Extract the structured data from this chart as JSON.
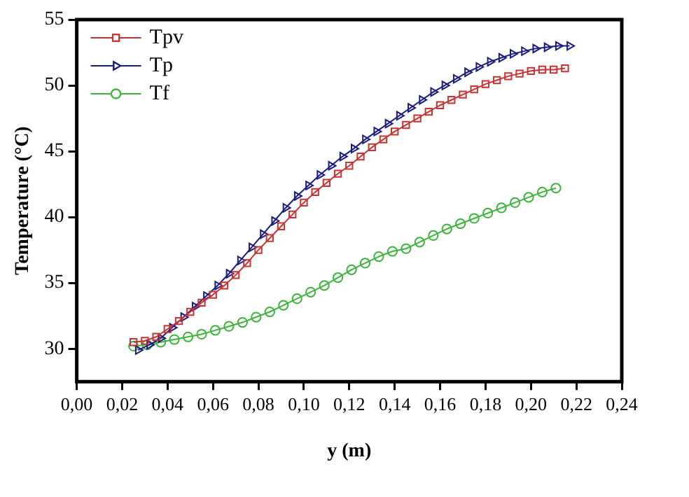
{
  "chart_data": {
    "type": "line",
    "xlabel": "y (m)",
    "ylabel": "Temperature (°C)",
    "xlim": [
      0,
      0.24
    ],
    "ylim": [
      27.5,
      55
    ],
    "xticks": [
      {
        "value": 0,
        "label": "0,00"
      },
      {
        "value": 0.02,
        "label": "0,02"
      },
      {
        "value": 0.04,
        "label": "0,04"
      },
      {
        "value": 0.06,
        "label": "0,06"
      },
      {
        "value": 0.08,
        "label": "0,08"
      },
      {
        "value": 0.1,
        "label": "0,10"
      },
      {
        "value": 0.12,
        "label": "0,12"
      },
      {
        "value": 0.14,
        "label": "0,14"
      },
      {
        "value": 0.16,
        "label": "0,16"
      },
      {
        "value": 0.18,
        "label": "0,18"
      },
      {
        "value": 0.2,
        "label": "0,20"
      },
      {
        "value": 0.22,
        "label": "0,22"
      },
      {
        "value": 0.24,
        "label": "0,24"
      }
    ],
    "yticks": [
      30,
      35,
      40,
      45,
      50,
      55
    ],
    "grid": false,
    "legend": "top left",
    "line_style": "solid",
    "series": [
      {
        "name": "Tpv",
        "color": "#c83232",
        "marker": "square",
        "x": [
          0.025,
          0.03,
          0.035,
          0.04,
          0.045,
          0.05,
          0.055,
          0.06,
          0.065,
          0.07,
          0.075,
          0.08,
          0.085,
          0.09,
          0.095,
          0.1,
          0.105,
          0.11,
          0.115,
          0.12,
          0.125,
          0.13,
          0.135,
          0.14,
          0.145,
          0.15,
          0.155,
          0.16,
          0.165,
          0.17,
          0.175,
          0.18,
          0.185,
          0.19,
          0.195,
          0.2,
          0.205,
          0.21,
          0.215
        ],
        "values": [
          30.5,
          30.6,
          30.9,
          31.5,
          32.1,
          32.8,
          33.5,
          34.1,
          34.8,
          35.6,
          36.5,
          37.5,
          38.4,
          39.3,
          40.2,
          41.1,
          41.9,
          42.6,
          43.3,
          43.9,
          44.6,
          45.3,
          45.9,
          46.5,
          47.0,
          47.5,
          48.0,
          48.5,
          48.9,
          49.3,
          49.7,
          50.1,
          50.4,
          50.7,
          50.9,
          51.1,
          51.2,
          51.2,
          51.3
        ]
      },
      {
        "name": "Tp",
        "color": "#1a1a80",
        "marker": "triangle",
        "x": [
          0.027,
          0.032,
          0.037,
          0.042,
          0.047,
          0.052,
          0.057,
          0.062,
          0.067,
          0.072,
          0.077,
          0.082,
          0.087,
          0.092,
          0.097,
          0.102,
          0.107,
          0.112,
          0.117,
          0.122,
          0.127,
          0.132,
          0.137,
          0.142,
          0.147,
          0.152,
          0.157,
          0.162,
          0.167,
          0.172,
          0.177,
          0.182,
          0.187,
          0.192,
          0.197,
          0.202,
          0.207,
          0.212,
          0.217
        ],
        "values": [
          29.9,
          30.3,
          30.8,
          31.6,
          32.4,
          33.2,
          34.0,
          34.8,
          35.7,
          36.7,
          37.7,
          38.7,
          39.7,
          40.7,
          41.6,
          42.4,
          43.2,
          43.9,
          44.6,
          45.2,
          45.9,
          46.5,
          47.1,
          47.7,
          48.3,
          48.9,
          49.5,
          50.0,
          50.5,
          51.0,
          51.4,
          51.8,
          52.1,
          52.4,
          52.6,
          52.8,
          52.9,
          53.0,
          53.0
        ]
      },
      {
        "name": "Tf",
        "color": "#3cb43c",
        "marker": "circle",
        "x": [
          0.025,
          0.031,
          0.037,
          0.043,
          0.049,
          0.055,
          0.061,
          0.067,
          0.073,
          0.079,
          0.085,
          0.091,
          0.097,
          0.103,
          0.109,
          0.115,
          0.121,
          0.127,
          0.133,
          0.139,
          0.145,
          0.151,
          0.157,
          0.163,
          0.169,
          0.175,
          0.181,
          0.187,
          0.193,
          0.199,
          0.205,
          0.211
        ],
        "values": [
          30.2,
          30.3,
          30.5,
          30.7,
          30.9,
          31.1,
          31.4,
          31.7,
          32.0,
          32.4,
          32.8,
          33.3,
          33.8,
          34.3,
          34.8,
          35.4,
          36.0,
          36.5,
          37.0,
          37.4,
          37.6,
          38.1,
          38.6,
          39.1,
          39.5,
          39.9,
          40.3,
          40.7,
          41.1,
          41.5,
          41.9,
          42.2
        ]
      }
    ]
  }
}
